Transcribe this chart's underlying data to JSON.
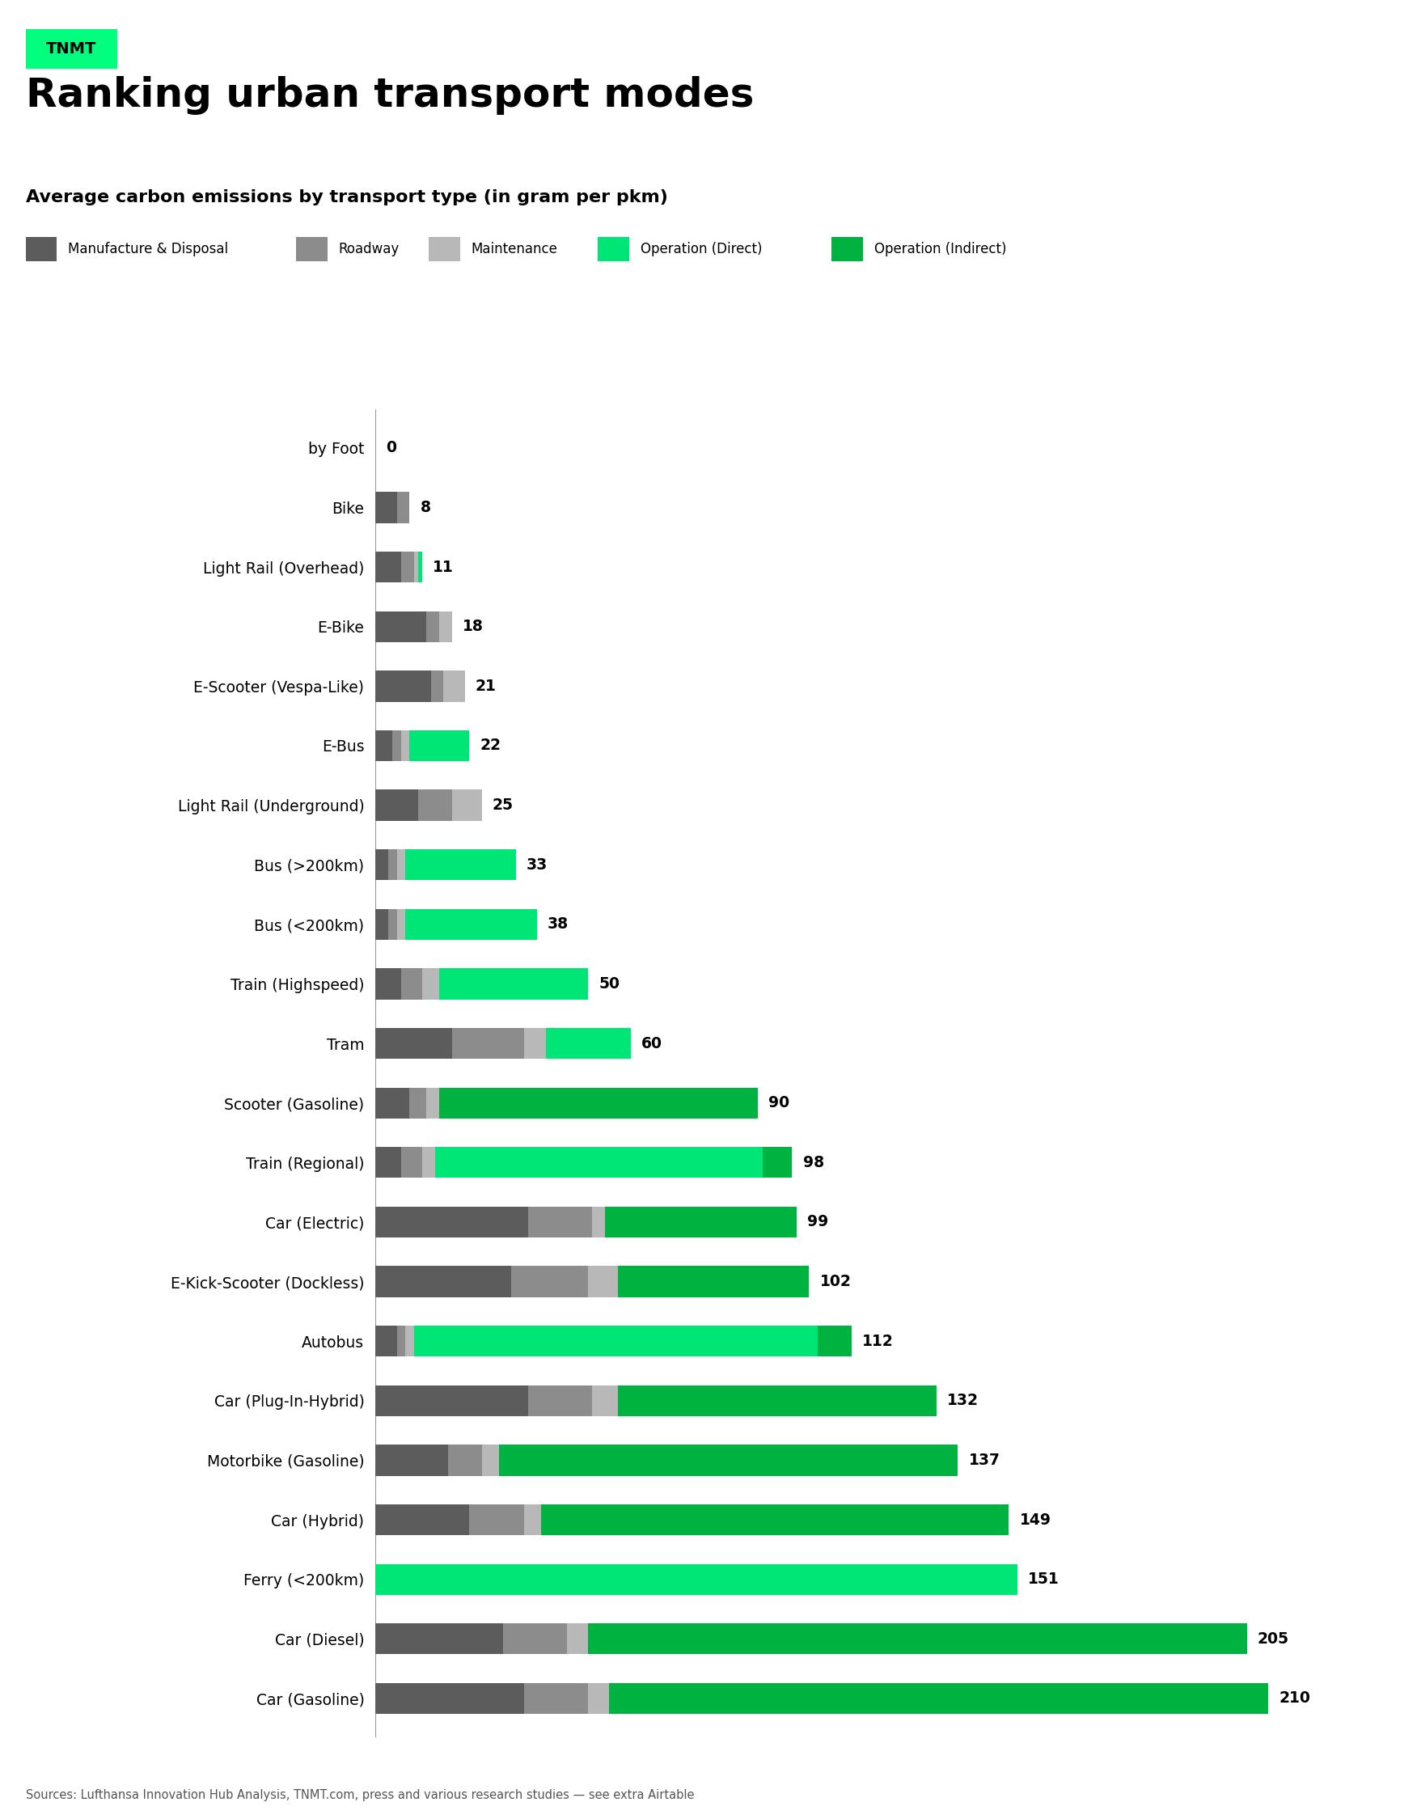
{
  "title": "Ranking urban transport modes",
  "subtitle": "Average carbon emissions by transport type (in gram per pkm)",
  "source": "Sources: Lufthansa Innovation Hub Analysis, TNMT.com, press and various research studies — see extra Airtable",
  "tnmt_label": "TNMT",
  "tnmt_bg": "#00FF7F",
  "categories": [
    "by Foot",
    "Bike",
    "Light Rail (Overhead)",
    "E-Bike",
    "E-Scooter (Vespa-Like)",
    "E-Bus",
    "Light Rail (Underground)",
    "Bus (>200km)",
    "Bus (<200km)",
    "Train (Highspeed)",
    "Tram",
    "Scooter (Gasoline)",
    "Train (Regional)",
    "Car (Electric)",
    "E-Kick-Scooter (Dockless)",
    "Autobus",
    "Car (Plug-In-Hybrid)",
    "Motorbike (Gasoline)",
    "Car (Hybrid)",
    "Ferry (<200km)",
    "Car (Diesel)",
    "Car (Gasoline)"
  ],
  "totals": [
    0,
    8,
    11,
    18,
    21,
    22,
    25,
    33,
    38,
    50,
    60,
    90,
    98,
    99,
    102,
    112,
    132,
    137,
    149,
    151,
    205,
    210
  ],
  "segments": {
    "manufacture": [
      0,
      5,
      6,
      12,
      13,
      4,
      10,
      3,
      3,
      6,
      18,
      8,
      6,
      36,
      32,
      5,
      36,
      17,
      22,
      0,
      30,
      35
    ],
    "roadway": [
      0,
      3,
      3,
      3,
      3,
      2,
      8,
      2,
      2,
      5,
      17,
      4,
      5,
      15,
      18,
      2,
      15,
      8,
      13,
      0,
      15,
      15
    ],
    "maintenance": [
      0,
      0,
      1,
      3,
      5,
      2,
      7,
      2,
      2,
      4,
      5,
      3,
      3,
      3,
      7,
      2,
      6,
      4,
      4,
      0,
      5,
      5
    ],
    "op_direct": [
      0,
      0,
      1,
      0,
      0,
      14,
      0,
      26,
      31,
      35,
      20,
      0,
      77,
      0,
      0,
      95,
      0,
      0,
      0,
      151,
      0,
      0
    ],
    "op_indirect": [
      0,
      0,
      0,
      0,
      0,
      0,
      0,
      0,
      0,
      0,
      0,
      75,
      7,
      45,
      45,
      8,
      75,
      108,
      110,
      0,
      155,
      155
    ]
  },
  "colors": {
    "manufacture": "#5c5c5c",
    "roadway": "#8c8c8c",
    "maintenance": "#b8b8b8",
    "op_direct": "#00e676",
    "op_indirect": "#00b341"
  },
  "legend_labels": {
    "manufacture": "Manufacture & Disposal",
    "roadway": "Roadway",
    "maintenance": "Maintenance",
    "op_direct": "Operation (Direct)",
    "op_indirect": "Operation (Indirect)"
  },
  "bg_color": "#ffffff",
  "bar_height": 0.52,
  "xlim_max": 230,
  "fig_width": 17.52,
  "fig_height": 22.49
}
